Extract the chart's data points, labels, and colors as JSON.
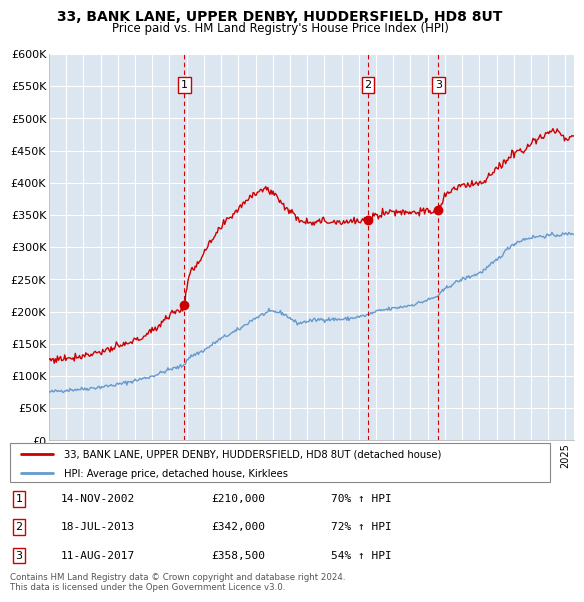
{
  "title": "33, BANK LANE, UPPER DENBY, HUDDERSFIELD, HD8 8UT",
  "subtitle": "Price paid vs. HM Land Registry's House Price Index (HPI)",
  "ylim": [
    0,
    600000
  ],
  "yticks": [
    0,
    50000,
    100000,
    150000,
    200000,
    250000,
    300000,
    350000,
    400000,
    450000,
    500000,
    550000,
    600000
  ],
  "xlim_start": 1995.0,
  "xlim_end": 2025.5,
  "sale_dates": [
    2002.87,
    2013.54,
    2017.62
  ],
  "sale_prices": [
    210000,
    342000,
    358500
  ],
  "sale_labels": [
    "1",
    "2",
    "3"
  ],
  "sale_pct": [
    "70% ↑ HPI",
    "72% ↑ HPI",
    "54% ↑ HPI"
  ],
  "sale_date_str": [
    "14-NOV-2002",
    "18-JUL-2013",
    "11-AUG-2017"
  ],
  "legend_label_red": "33, BANK LANE, UPPER DENBY, HUDDERSFIELD, HD8 8UT (detached house)",
  "legend_label_blue": "HPI: Average price, detached house, Kirklees",
  "footnote": "Contains HM Land Registry data © Crown copyright and database right 2024.\nThis data is licensed under the Open Government Licence v3.0.",
  "red_color": "#cc0000",
  "blue_color": "#6699cc",
  "bg_color": "#dce6f1",
  "grid_color": "#ffffff",
  "vline_color": "#cc0000",
  "blue_keypoints_x": [
    1995.0,
    1996.0,
    1997.0,
    1998.0,
    1999.0,
    2000.0,
    2001.0,
    2002.0,
    2002.87,
    2003.0,
    2004.0,
    2005.0,
    2006.0,
    2007.0,
    2008.0,
    2008.5,
    2009.0,
    2009.5,
    2010.0,
    2011.0,
    2012.0,
    2013.0,
    2013.54,
    2014.0,
    2015.0,
    2016.0,
    2017.0,
    2017.62,
    2018.0,
    2019.0,
    2020.0,
    2021.0,
    2022.0,
    2023.0,
    2024.0,
    2025.0,
    2025.5
  ],
  "blue_keypoints_y": [
    75000,
    78000,
    80000,
    83000,
    87000,
    93000,
    100000,
    110000,
    118000,
    125000,
    140000,
    158000,
    172000,
    190000,
    200000,
    198000,
    190000,
    182000,
    185000,
    188000,
    188000,
    192000,
    195000,
    200000,
    205000,
    210000,
    218000,
    225000,
    235000,
    250000,
    260000,
    280000,
    305000,
    315000,
    318000,
    320000,
    322000
  ],
  "red_keypoints_x": [
    1995.0,
    1996.0,
    1997.0,
    1998.0,
    1999.0,
    2000.0,
    2001.0,
    2002.0,
    2002.87,
    2003.0,
    2004.0,
    2005.0,
    2006.0,
    2007.0,
    2007.5,
    2008.0,
    2008.5,
    2009.0,
    2009.5,
    2010.0,
    2011.0,
    2012.0,
    2013.0,
    2013.54,
    2014.0,
    2015.0,
    2016.0,
    2017.0,
    2017.62,
    2018.0,
    2019.0,
    2020.0,
    2021.0,
    2022.0,
    2023.0,
    2023.5,
    2024.0,
    2024.5,
    2025.0,
    2025.5
  ],
  "red_keypoints_y": [
    125000,
    128000,
    132000,
    138000,
    145000,
    155000,
    170000,
    195000,
    210000,
    240000,
    290000,
    330000,
    360000,
    385000,
    390000,
    385000,
    370000,
    355000,
    345000,
    340000,
    340000,
    340000,
    340000,
    342000,
    350000,
    355000,
    355000,
    355000,
    358500,
    380000,
    395000,
    400000,
    420000,
    445000,
    460000,
    470000,
    478000,
    480000,
    468000,
    472000
  ]
}
